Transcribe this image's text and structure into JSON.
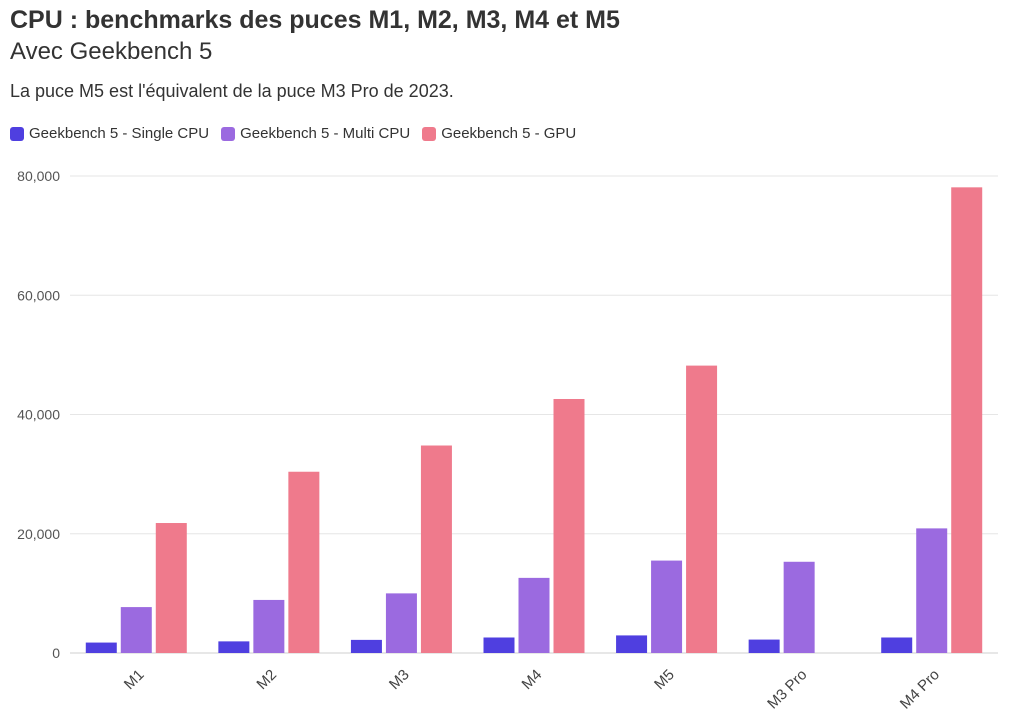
{
  "header": {
    "title": "CPU : benchmarks des puces M1, M2, M3, M4 et M5",
    "subtitle": "Avec Geekbench 5",
    "description": "La puce M5 est l'équivalent de la puce M3 Pro de 2023."
  },
  "chart_data": {
    "type": "bar",
    "title": "CPU : benchmarks des puces M1, M2, M3, M4 et M5",
    "subtitle": "Avec Geekbench 5",
    "xlabel": "",
    "ylabel": "",
    "ylim": [
      0,
      80000
    ],
    "yticks": [
      0,
      20000,
      40000,
      60000,
      80000
    ],
    "ytick_labels": [
      "0",
      "20,000",
      "40,000",
      "60,000",
      "80,000"
    ],
    "grid": true,
    "legend_position": "top-left",
    "categories": [
      "M1",
      "M2",
      "M3",
      "M4",
      "M5",
      "M3 Pro",
      "M4 Pro"
    ],
    "series": [
      {
        "name": "Geekbench 5 - Single CPU",
        "color": "#4f3fe0",
        "values": [
          1750,
          1950,
          2200,
          2600,
          2950,
          2250,
          2600
        ]
      },
      {
        "name": "Geekbench 5 - Multi CPU",
        "color": "#9b6ae0",
        "values": [
          7700,
          8900,
          10000,
          12600,
          15500,
          15300,
          20900
        ]
      },
      {
        "name": "Geekbench 5 - GPU",
        "color": "#ef7a8c",
        "values": [
          21800,
          30400,
          34800,
          42600,
          48200,
          null,
          78100
        ]
      }
    ]
  }
}
